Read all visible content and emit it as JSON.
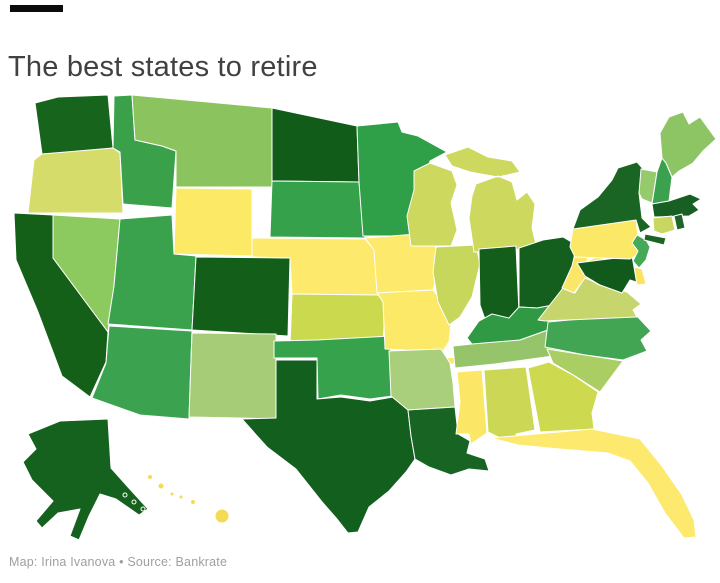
{
  "title": "The best states to retire",
  "attribution": "Map: Irina Ivanova • Source: Bankrate",
  "colors": {
    "background": "#ffffff",
    "title_text": "#414141",
    "attribution_text": "#9f9f9f",
    "kicker_bar": "#0c0c0c",
    "state_border": "#ffffff",
    "scale_best_dark_green": "#145e1c",
    "scale_medium_green": "#36a14b",
    "scale_light_green": "#8cc45e",
    "scale_yellow_green": "#cdd94e",
    "scale_yellow": "#fce96a"
  },
  "map": {
    "type": "us-choropleth",
    "states": [
      {
        "id": "WA",
        "name": "Washington",
        "color": "#17651d"
      },
      {
        "id": "OR",
        "name": "Oregon",
        "color": "#d6dc69"
      },
      {
        "id": "CA",
        "name": "California",
        "color": "#156018"
      },
      {
        "id": "NV",
        "name": "Nevada",
        "color": "#8cc95e"
      },
      {
        "id": "ID",
        "name": "Idaho",
        "color": "#3aa04a"
      },
      {
        "id": "MT",
        "name": "Montana",
        "color": "#8bc45e"
      },
      {
        "id": "WY",
        "name": "Wyoming",
        "color": "#fce966"
      },
      {
        "id": "UT",
        "name": "Utah",
        "color": "#3aa24c"
      },
      {
        "id": "CO",
        "name": "Colorado",
        "color": "#135f1a"
      },
      {
        "id": "AZ",
        "name": "Arizona",
        "color": "#3ba350"
      },
      {
        "id": "NM",
        "name": "New Mexico",
        "color": "#a6cc77"
      },
      {
        "id": "ND",
        "name": "North Dakota",
        "color": "#115c18"
      },
      {
        "id": "SD",
        "name": "South Dakota",
        "color": "#36a14b"
      },
      {
        "id": "NE",
        "name": "Nebraska",
        "color": "#fde96b"
      },
      {
        "id": "KS",
        "name": "Kansas",
        "color": "#cbd94f"
      },
      {
        "id": "OK",
        "name": "Oklahoma",
        "color": "#36a34c"
      },
      {
        "id": "TX",
        "name": "Texas",
        "color": "#135f1d"
      },
      {
        "id": "MN",
        "name": "Minnesota",
        "color": "#2fa047"
      },
      {
        "id": "IA",
        "name": "Iowa",
        "color": "#fde96b"
      },
      {
        "id": "MO",
        "name": "Missouri",
        "color": "#fde968"
      },
      {
        "id": "AR",
        "name": "Arkansas",
        "color": "#a9ce7c"
      },
      {
        "id": "LA",
        "name": "Louisiana",
        "color": "#176423"
      },
      {
        "id": "WI",
        "name": "Wisconsin",
        "color": "#ccd85e"
      },
      {
        "id": "MI",
        "name": "Michigan",
        "color": "#ccd85e"
      },
      {
        "id": "IL",
        "name": "Illinois",
        "color": "#c6d75c"
      },
      {
        "id": "IN",
        "name": "Indiana",
        "color": "#145e1c"
      },
      {
        "id": "OH",
        "name": "Ohio",
        "color": "#155f1e"
      },
      {
        "id": "KY",
        "name": "Kentucky",
        "color": "#2f9a43"
      },
      {
        "id": "TN",
        "name": "Tennessee",
        "color": "#95c46a"
      },
      {
        "id": "MS",
        "name": "Mississippi",
        "color": "#fbe765"
      },
      {
        "id": "AL",
        "name": "Alabama",
        "color": "#ccd855"
      },
      {
        "id": "GA",
        "name": "Georgia",
        "color": "#cdd94e"
      },
      {
        "id": "FL",
        "name": "Florida",
        "color": "#fce96e"
      },
      {
        "id": "SC",
        "name": "South Carolina",
        "color": "#abce64"
      },
      {
        "id": "NC",
        "name": "North Carolina",
        "color": "#41a553"
      },
      {
        "id": "VA",
        "name": "Virginia",
        "color": "#c7d66c"
      },
      {
        "id": "WV",
        "name": "West Virginia",
        "color": "#fbe669"
      },
      {
        "id": "MD",
        "name": "Maryland",
        "color": "#115a1b"
      },
      {
        "id": "DE",
        "name": "Delaware",
        "color": "#fbe25f"
      },
      {
        "id": "PA",
        "name": "Pennsylvania",
        "color": "#fce867"
      },
      {
        "id": "NJ",
        "name": "New Jersey",
        "color": "#44aa57"
      },
      {
        "id": "NY",
        "name": "New York",
        "color": "#1b6524"
      },
      {
        "id": "CT",
        "name": "Connecticut",
        "color": "#c8d75f"
      },
      {
        "id": "RI",
        "name": "Rhode Island",
        "color": "#1d6628"
      },
      {
        "id": "MA",
        "name": "Massachusetts",
        "color": "#175f22"
      },
      {
        "id": "VT",
        "name": "Vermont",
        "color": "#95ca6d"
      },
      {
        "id": "NH",
        "name": "New Hampshire",
        "color": "#3ca14e"
      },
      {
        "id": "ME",
        "name": "Maine",
        "color": "#8dc464"
      },
      {
        "id": "AK",
        "name": "Alaska",
        "color": "#15621f"
      },
      {
        "id": "HI",
        "name": "Hawaii",
        "color": "#f4da55"
      }
    ]
  }
}
